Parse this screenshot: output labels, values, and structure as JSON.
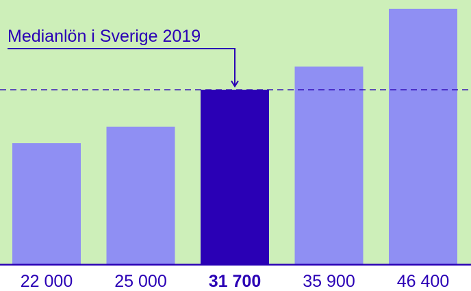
{
  "chart_data": {
    "type": "bar",
    "categories": [
      "22 000",
      "25 000",
      "31 700",
      "35 900",
      "46 400"
    ],
    "values": [
      22000,
      25000,
      31700,
      35900,
      46400
    ],
    "highlight_index": 2,
    "reference_line": {
      "value": 31700,
      "label": "Medianlön i Sverige 2019",
      "style": "dashed"
    },
    "ylim": [
      0,
      48000
    ],
    "title": "",
    "xlabel": "",
    "ylabel": "",
    "grid": false,
    "legend": "none"
  },
  "colors": {
    "background": "#cdefb9",
    "bar": "#8f8ff3",
    "highlight_bar": "#2a00b5",
    "axis": "#2a00b5",
    "tick_text": "#2a00b5",
    "reference_line": "#2a00b5"
  }
}
